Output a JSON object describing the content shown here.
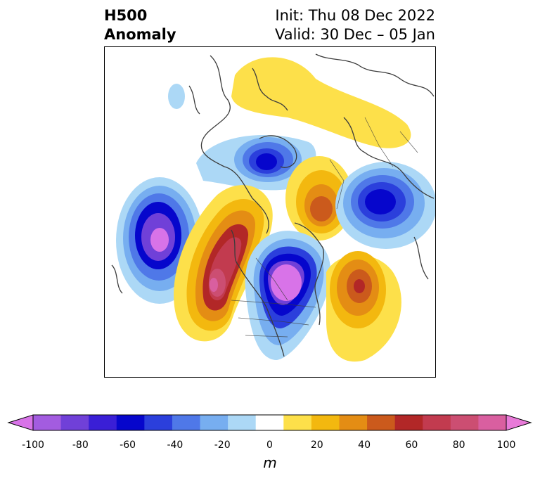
{
  "header": {
    "title_line1": "H500",
    "title_line2": "Anomaly",
    "init": "Init: Thu 08 Dec 2022",
    "valid": "Valid: 30 Dec – 05 Jan"
  },
  "colorbar": {
    "unit": "m",
    "range": [
      -100,
      100
    ],
    "ticks": [
      "-100",
      "-80",
      "-60",
      "-40",
      "-20",
      "0",
      "20",
      "40",
      "60",
      "80",
      "100"
    ],
    "colors": [
      "#d873e8",
      "#a35ce0",
      "#7040d8",
      "#3a1fd6",
      "#0606cc",
      "#2b3fdc",
      "#4f78e8",
      "#77aef0",
      "#acd8f6",
      "#ffffff",
      "#fde04a",
      "#f3b80f",
      "#e48d14",
      "#cb5a1c",
      "#b22727",
      "#c23b4f",
      "#cc4e72",
      "#d95fa0",
      "#e87ad8"
    ]
  }
}
